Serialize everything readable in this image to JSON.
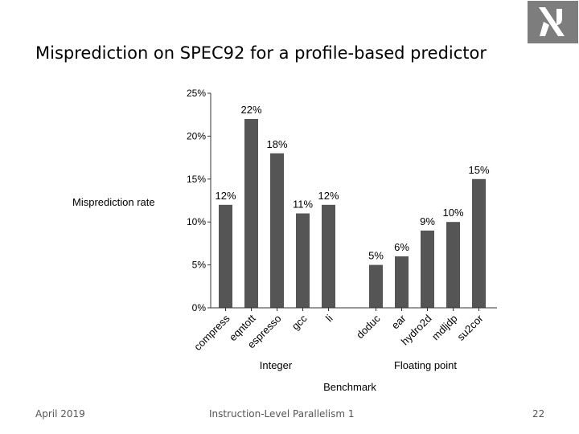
{
  "slide": {
    "title": "Misprediction on SPEC92 for a profile-based predictor",
    "footer_date": "April 2019",
    "footer_course": "Instruction-Level Parallelism 1",
    "page_number": "22"
  },
  "logo": {
    "icon": "institution-logo-icon",
    "color": "#7d7d7d"
  },
  "chart_data": {
    "type": "bar",
    "ylabel": "Misprediction rate",
    "xlabel": "Benchmark",
    "ylim": [
      0,
      25
    ],
    "yticks": [
      "0%",
      "5%",
      "10%",
      "15%",
      "20%",
      "25%"
    ],
    "bar_color": "#555555",
    "groups": [
      {
        "name": "Integer",
        "categories": [
          "compress",
          "eqntott",
          "espresso",
          "gcc",
          "li"
        ],
        "values": [
          12,
          22,
          18,
          11,
          12
        ],
        "labels": [
          "12%",
          "22%",
          "18%",
          "11%",
          "12%"
        ]
      },
      {
        "name": "Floating point",
        "categories": [
          "doduc",
          "ear",
          "hydro2d",
          "mdljdp",
          "su2cor"
        ],
        "values": [
          5,
          6,
          9,
          10,
          15
        ],
        "labels": [
          "5%",
          "6%",
          "9%",
          "10%",
          "15%"
        ]
      }
    ]
  }
}
